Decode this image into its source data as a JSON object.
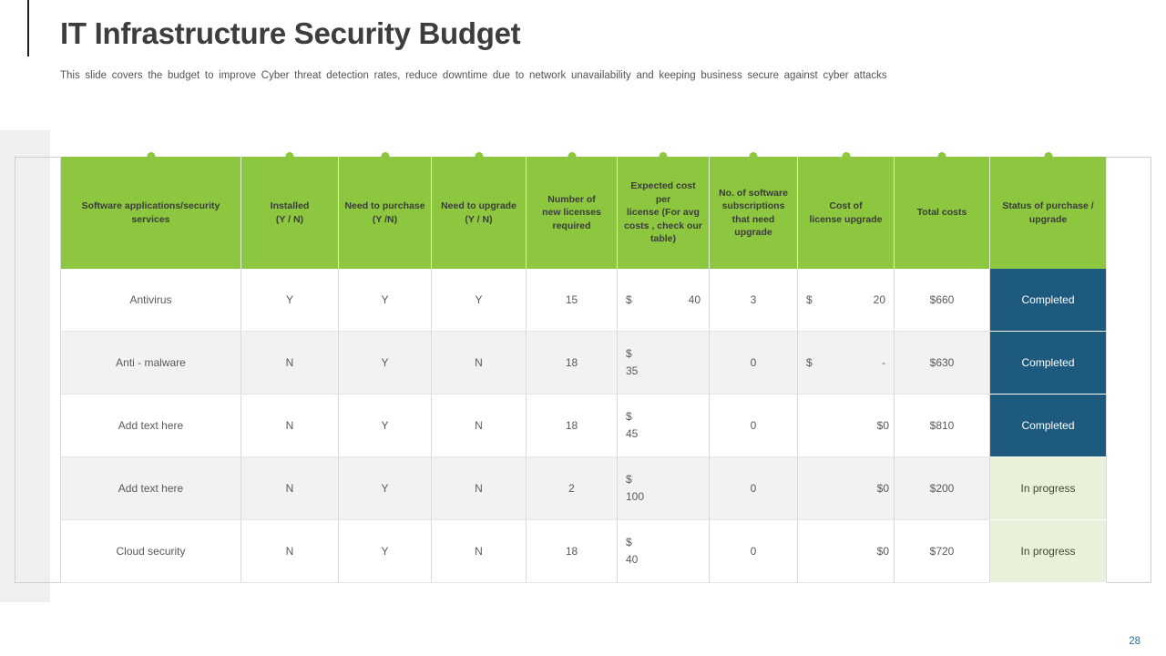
{
  "slide": {
    "title": "IT Infrastructure Security Budget",
    "subtitle": "This slide covers the budget to improve Cyber threat detection rates, reduce downtime due to network unavailability and keeping business secure against cyber attacks",
    "page_number": "28"
  },
  "colors": {
    "header_green": "#8dc63f",
    "completed_bg": "#1d5a7d",
    "in_progress_bg": "#e8f2da",
    "alt_row_bg": "#f2f2f2"
  },
  "table": {
    "columns": [
      {
        "id": "service",
        "label": "Software applications/security\nservices"
      },
      {
        "id": "installed",
        "label": "Installed\n(Y / N)"
      },
      {
        "id": "need-purchase",
        "label": "Need to purchase\n(Y /N)"
      },
      {
        "id": "need-upgrade",
        "label": "Need to upgrade\n(Y / N)"
      },
      {
        "id": "licenses",
        "label": "Number of\nnew licenses\nrequired"
      },
      {
        "id": "cost-per-license",
        "label": "Expected cost per\nlicense (For avg\ncosts , check our\ntable)"
      },
      {
        "id": "subscriptions",
        "label": "No. of software\nsubscriptions\nthat need upgrade"
      },
      {
        "id": "upgrade-cost",
        "label": "Cost of\nlicense upgrade"
      },
      {
        "id": "total-costs",
        "label": "Total costs"
      },
      {
        "id": "status",
        "label": "Status of purchase /\nupgrade"
      }
    ],
    "rows": [
      {
        "service": "Antivirus",
        "installed": "Y",
        "need_purchase": "Y",
        "need_upgrade": "Y",
        "licenses": "15",
        "cost_per_license": {
          "layout": "split",
          "symbol": "$",
          "value": "40"
        },
        "subscriptions": "3",
        "upgrade_cost": {
          "layout": "split",
          "symbol": "$",
          "value": "20"
        },
        "total": "$660",
        "status": {
          "label": "Completed",
          "type": "completed"
        }
      },
      {
        "service": "Anti - malware",
        "installed": "N",
        "need_purchase": "Y",
        "need_upgrade": "N",
        "licenses": "18",
        "cost_per_license": {
          "layout": "stack",
          "symbol": "$",
          "value": "35"
        },
        "subscriptions": "0",
        "upgrade_cost": {
          "layout": "split",
          "symbol": "$",
          "value": "-"
        },
        "total": "$630",
        "status": {
          "label": "Completed",
          "type": "completed"
        }
      },
      {
        "service": "Add text here",
        "installed": "N",
        "need_purchase": "Y",
        "need_upgrade": "N",
        "licenses": "18",
        "cost_per_license": {
          "layout": "stack",
          "symbol": "$",
          "value": "45"
        },
        "subscriptions": "0",
        "upgrade_cost": {
          "layout": "right",
          "value": "$0"
        },
        "total": "$810",
        "status": {
          "label": "Completed",
          "type": "completed"
        }
      },
      {
        "service": "Add text here",
        "installed": "N",
        "need_purchase": "Y",
        "need_upgrade": "N",
        "licenses": "2",
        "cost_per_license": {
          "layout": "stack",
          "symbol": "$",
          "value": "100"
        },
        "subscriptions": "0",
        "upgrade_cost": {
          "layout": "right",
          "value": "$0"
        },
        "total": "$200",
        "status": {
          "label": "In progress",
          "type": "inprogress"
        }
      },
      {
        "service": "Cloud security",
        "installed": "N",
        "need_purchase": "Y",
        "need_upgrade": "N",
        "licenses": "18",
        "cost_per_license": {
          "layout": "stack",
          "symbol": "$",
          "value": "40"
        },
        "subscriptions": "0",
        "upgrade_cost": {
          "layout": "right",
          "value": "$0"
        },
        "total": "$720",
        "status": {
          "label": "In progress",
          "type": "inprogress"
        }
      }
    ]
  }
}
